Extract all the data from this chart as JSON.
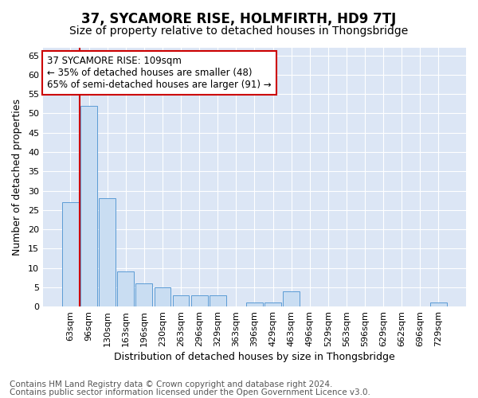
{
  "title": "37, SYCAMORE RISE, HOLMFIRTH, HD9 7TJ",
  "subtitle": "Size of property relative to detached houses in Thongsbridge",
  "xlabel": "Distribution of detached houses by size in Thongsbridge",
  "ylabel": "Number of detached properties",
  "categories": [
    "63sqm",
    "96sqm",
    "130sqm",
    "163sqm",
    "196sqm",
    "230sqm",
    "263sqm",
    "296sqm",
    "329sqm",
    "363sqm",
    "396sqm",
    "429sqm",
    "463sqm",
    "496sqm",
    "529sqm",
    "563sqm",
    "596sqm",
    "629sqm",
    "662sqm",
    "696sqm",
    "729sqm"
  ],
  "values": [
    27,
    52,
    28,
    9,
    6,
    5,
    3,
    3,
    3,
    0,
    1,
    1,
    4,
    0,
    0,
    0,
    0,
    0,
    0,
    0,
    1
  ],
  "bar_color": "#c9ddf2",
  "bar_edge_color": "#5b9bd5",
  "vline_color": "#cc0000",
  "vline_x": 0.5,
  "annotation_text": "37 SYCAMORE RISE: 109sqm\n← 35% of detached houses are smaller (48)\n65% of semi-detached houses are larger (91) →",
  "annotation_box_facecolor": "#ffffff",
  "annotation_box_edgecolor": "#cc0000",
  "ylim": [
    0,
    67
  ],
  "yticks": [
    0,
    5,
    10,
    15,
    20,
    25,
    30,
    35,
    40,
    45,
    50,
    55,
    60,
    65
  ],
  "fig_bg_color": "#ffffff",
  "plot_bg_color": "#dce6f5",
  "grid_color": "#ffffff",
  "title_fontsize": 12,
  "subtitle_fontsize": 10,
  "xlabel_fontsize": 9,
  "ylabel_fontsize": 9,
  "tick_fontsize": 8,
  "annot_fontsize": 8.5,
  "footer_fontsize": 7.5,
  "footer_line1": "Contains HM Land Registry data © Crown copyright and database right 2024.",
  "footer_line2": "Contains public sector information licensed under the Open Government Licence v3.0."
}
